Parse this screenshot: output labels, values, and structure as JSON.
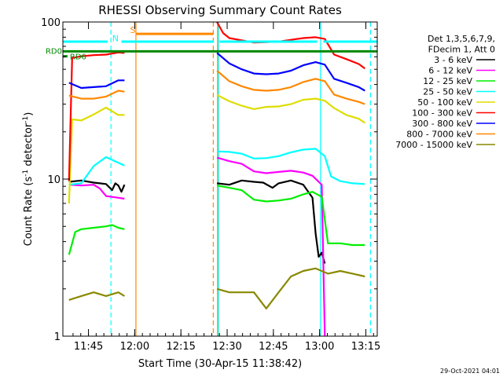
{
  "chart_data": {
    "type": "line",
    "title": "RHESSI Observing Summary Count Rates",
    "xlabel": "Start Time (30-Apr-15 11:38:42)",
    "ylabel": "Count Rate (s",
    "ylabel_sup": "-1",
    "ylabel_tail": " detector",
    "ylabel_tail_sup": "-1",
    "ylabel_close": ")",
    "xlim": [
      -2,
      100
    ],
    "ylim": [
      1,
      100
    ],
    "y_scale": "log",
    "x_ticks": [
      {
        "v": 6.3,
        "label": "11:45"
      },
      {
        "v": 21.3,
        "label": "12:00"
      },
      {
        "v": 36.3,
        "label": "12:15"
      },
      {
        "v": 51.3,
        "label": "12:30"
      },
      {
        "v": 66.3,
        "label": "12:45"
      },
      {
        "v": 81.3,
        "label": "13:00"
      },
      {
        "v": 96.3,
        "label": "13:15"
      }
    ],
    "y_ticks": [
      {
        "v": 1,
        "label": "1"
      },
      {
        "v": 10,
        "label": "10"
      },
      {
        "v": 100,
        "label": "100"
      }
    ],
    "legend_header": [
      "Det 1,3,5,6,7,9,",
      "FDecim 1, Att 0"
    ],
    "series": [
      {
        "name": "3 - 6 keV",
        "color": "#000000",
        "segments": [
          [
            [
              0,
              9.6
            ],
            [
              4,
              9.8
            ],
            [
              8,
              9.5
            ],
            [
              12,
              9.3
            ],
            [
              14,
              8.5
            ],
            [
              15,
              9.4
            ],
            [
              16,
              9.1
            ],
            [
              17,
              8.3
            ],
            [
              18,
              9.2
            ]
          ],
          [
            [
              48,
              9.4
            ],
            [
              52,
              9.2
            ],
            [
              56,
              9.8
            ],
            [
              60,
              9.6
            ],
            [
              63,
              9.5
            ],
            [
              66,
              8.8
            ],
            [
              68,
              9.4
            ],
            [
              72,
              9.8
            ],
            [
              76,
              9.2
            ],
            [
              79,
              7.6
            ],
            [
              80,
              4.5
            ],
            [
              81,
              3.2
            ],
            [
              82,
              3.4
            ],
            [
              83,
              2.9
            ]
          ]
        ]
      },
      {
        "name": "6 - 12 keV",
        "color": "#ff00ff",
        "segments": [
          [
            [
              0,
              9.2
            ],
            [
              4,
              9.1
            ],
            [
              8,
              9.2
            ],
            [
              10,
              8.7
            ],
            [
              12,
              7.8
            ],
            [
              14,
              7.7
            ],
            [
              16,
              7.6
            ],
            [
              18,
              7.5
            ]
          ],
          [
            [
              48,
              13.7
            ],
            [
              52,
              13.0
            ],
            [
              56,
              12.5
            ],
            [
              60,
              11.2
            ],
            [
              64,
              10.9
            ],
            [
              68,
              11.1
            ],
            [
              72,
              11.3
            ],
            [
              76,
              11.0
            ],
            [
              79,
              10.5
            ],
            [
              82,
              9.2
            ],
            [
              83,
              1.0
            ]
          ]
        ]
      },
      {
        "name": "12 - 25 keV",
        "color": "#00ee00",
        "segments": [
          [
            [
              0,
              3.3
            ],
            [
              2,
              4.6
            ],
            [
              4,
              4.8
            ],
            [
              8,
              4.9
            ],
            [
              12,
              5.0
            ],
            [
              14,
              5.1
            ],
            [
              16,
              4.9
            ],
            [
              18,
              4.8
            ]
          ],
          [
            [
              48,
              9.1
            ],
            [
              52,
              8.8
            ],
            [
              56,
              8.5
            ],
            [
              60,
              7.4
            ],
            [
              64,
              7.2
            ],
            [
              68,
              7.3
            ],
            [
              72,
              7.5
            ],
            [
              76,
              8.0
            ],
            [
              79,
              8.3
            ],
            [
              82,
              7.7
            ],
            [
              84,
              3.9
            ],
            [
              88,
              3.9
            ],
            [
              92,
              3.8
            ],
            [
              96,
              3.8
            ]
          ]
        ]
      },
      {
        "name": "25 - 50 keV",
        "color": "#00ffff",
        "segments": [
          [
            [
              0,
              9.2
            ],
            [
              4,
              9.4
            ],
            [
              8,
              12.1
            ],
            [
              12,
              13.8
            ],
            [
              16,
              12.7
            ],
            [
              18,
              12.2
            ]
          ],
          [
            [
              48,
              15.0
            ],
            [
              52,
              14.9
            ],
            [
              56,
              14.5
            ],
            [
              60,
              13.5
            ],
            [
              64,
              13.6
            ],
            [
              68,
              14.0
            ],
            [
              72,
              14.8
            ],
            [
              76,
              15.4
            ],
            [
              80,
              15.6
            ],
            [
              83,
              14.0
            ],
            [
              85,
              10.4
            ],
            [
              88,
              9.7
            ],
            [
              92,
              9.4
            ],
            [
              96,
              9.3
            ]
          ]
        ]
      },
      {
        "name": "50 - 100 keV",
        "color": "#dddd00",
        "segments": [
          [
            [
              0,
              7.0
            ],
            [
              1,
              24.0
            ],
            [
              4,
              23.6
            ],
            [
              8,
              25.8
            ],
            [
              12,
              28.5
            ],
            [
              16,
              25.6
            ],
            [
              18,
              25.6
            ]
          ],
          [
            [
              48,
              34.3
            ],
            [
              52,
              31.3
            ],
            [
              56,
              29.3
            ],
            [
              60,
              27.9
            ],
            [
              64,
              28.8
            ],
            [
              68,
              29.0
            ],
            [
              72,
              30.0
            ],
            [
              76,
              32.0
            ],
            [
              80,
              32.5
            ],
            [
              83,
              31.5
            ],
            [
              86,
              28.3
            ],
            [
              90,
              25.6
            ],
            [
              94,
              24.2
            ],
            [
              96,
              22.8
            ]
          ]
        ]
      },
      {
        "name": "100 - 300 keV",
        "color": "#ff0000",
        "segments": [
          [
            [
              0,
              9.7
            ],
            [
              1,
              59.0
            ],
            [
              4,
              60.5
            ],
            [
              8,
              61.5
            ],
            [
              12,
              62.0
            ],
            [
              16,
              64.0
            ],
            [
              18,
              63.5
            ]
          ],
          [
            [
              48,
              100
            ],
            [
              50,
              85.0
            ],
            [
              52,
              79.0
            ],
            [
              56,
              76.5
            ],
            [
              60,
              74.0
            ],
            [
              64,
              74.5
            ],
            [
              68,
              75.0
            ],
            [
              72,
              77.0
            ],
            [
              76,
              79.0
            ],
            [
              80,
              80.0
            ],
            [
              83,
              78.0
            ],
            [
              86,
              62.0
            ],
            [
              90,
              58.0
            ],
            [
              94,
              54.0
            ],
            [
              96,
              50.5
            ]
          ]
        ]
      },
      {
        "name": "300 - 800 keV",
        "color": "#0000ff",
        "segments": [
          [
            [
              0,
              41.0
            ],
            [
              4,
              38.0
            ],
            [
              8,
              38.5
            ],
            [
              12,
              39.0
            ],
            [
              16,
              42.5
            ],
            [
              18,
              42.5
            ]
          ],
          [
            [
              48,
              63.5
            ],
            [
              52,
              54.5
            ],
            [
              56,
              50.0
            ],
            [
              60,
              47.0
            ],
            [
              64,
              46.5
            ],
            [
              68,
              47.0
            ],
            [
              72,
              49.0
            ],
            [
              76,
              53.0
            ],
            [
              80,
              55.5
            ],
            [
              83,
              53.5
            ],
            [
              86,
              43.5
            ],
            [
              90,
              41.0
            ],
            [
              94,
              38.5
            ],
            [
              96,
              36.5
            ]
          ]
        ]
      },
      {
        "name": "800 - 7000 keV",
        "color": "#ff8800",
        "segments": [
          [
            [
              0,
              34.0
            ],
            [
              4,
              32.5
            ],
            [
              8,
              32.5
            ],
            [
              12,
              33.5
            ],
            [
              16,
              36.5
            ],
            [
              18,
              36.0
            ]
          ],
          [
            [
              48,
              49.0
            ],
            [
              52,
              42.0
            ],
            [
              56,
              39.0
            ],
            [
              60,
              37.0
            ],
            [
              64,
              36.5
            ],
            [
              68,
              37.0
            ],
            [
              72,
              38.5
            ],
            [
              76,
              41.5
            ],
            [
              80,
              43.5
            ],
            [
              83,
              42.0
            ],
            [
              86,
              34.5
            ],
            [
              90,
              32.5
            ],
            [
              94,
              31.0
            ],
            [
              96,
              30.0
            ]
          ]
        ]
      },
      {
        "name": "7000 - 15000 keV",
        "color": "#888800",
        "segments": [
          [
            [
              0,
              1.7
            ],
            [
              4,
              1.8
            ],
            [
              8,
              1.9
            ],
            [
              12,
              1.8
            ],
            [
              16,
              1.9
            ],
            [
              18,
              1.8
            ]
          ],
          [
            [
              48,
              2.0
            ],
            [
              52,
              1.9
            ],
            [
              56,
              1.9
            ],
            [
              60,
              1.9
            ],
            [
              64,
              1.5
            ],
            [
              68,
              1.9
            ],
            [
              72,
              2.4
            ],
            [
              76,
              2.6
            ],
            [
              80,
              2.7
            ],
            [
              84,
              2.5
            ],
            [
              88,
              2.6
            ],
            [
              92,
              2.5
            ],
            [
              96,
              2.4
            ]
          ]
        ]
      }
    ],
    "vlines": [
      {
        "x": 13.6,
        "color": "#00ffff",
        "dash": true
      },
      {
        "x": 21.7,
        "color": "#ff8800",
        "dash": false
      },
      {
        "x": 46.8,
        "color": "#ff8800",
        "dash": true
      },
      {
        "x": 48.2,
        "color": "#ff8800",
        "dash": false
      },
      {
        "x": 48.5,
        "color": "#00ffff",
        "dash": false
      },
      {
        "x": 81.6,
        "color": "#00ffff",
        "dash": false
      },
      {
        "x": 97.8,
        "color": "#00ffff",
        "dash": true
      }
    ],
    "bars": [
      {
        "label": "N",
        "color": "#00ffff",
        "x0": -2,
        "x1": 100,
        "y": 75,
        "gap": [
          12.5,
          17.0
        ],
        "gap2": [
          47.0,
          48.8
        ],
        "gap3": [
          80.5,
          82.5
        ],
        "lx": 14.0,
        "ly": 78
      },
      {
        "label": "S",
        "color": "#ff8800",
        "x0": 21.7,
        "x1": 46.8,
        "y": 84,
        "lx": 19.8,
        "ly": 88
      },
      {
        "label": "RD0",
        "color": "#008800",
        "x0": -2,
        "x1": 100,
        "y": 65
      },
      {
        "label": "RD6",
        "color": "#008800",
        "x0": -2,
        "x1": -0.5,
        "y": 60.5
      }
    ],
    "timestamp": "29-Oct-2021 04:01"
  }
}
